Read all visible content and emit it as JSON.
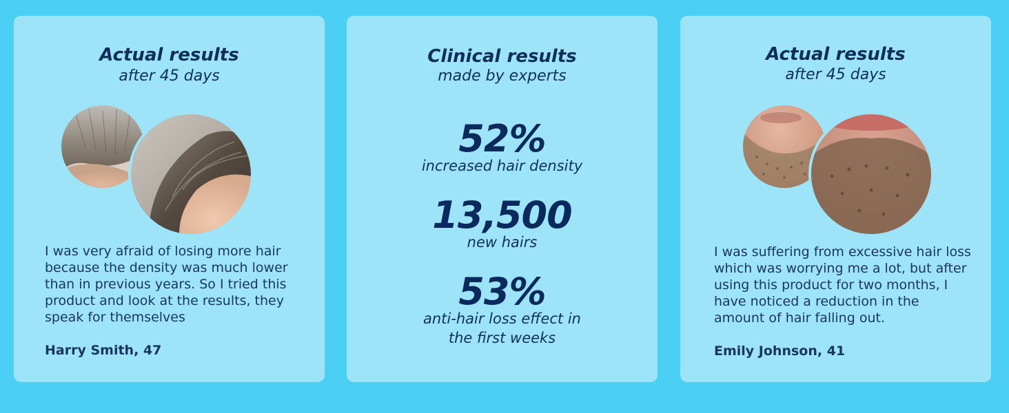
{
  "cards": [
    {
      "title": "Actual results",
      "subtitle": "after 45 days",
      "photos": [
        "hair-before-photo",
        "hair-after-photo"
      ],
      "testimonial": "I was very afraid of losing more hair because the density was much lower than in previous years. So I tried this product and look at the results, they speak for themselves",
      "author": "Harry Smith, 47"
    },
    {
      "title": "Clinical results",
      "subtitle": "made by experts",
      "stats": [
        {
          "value": "52%",
          "label": "increased hair density"
        },
        {
          "value": "13,500",
          "label": "new hairs"
        },
        {
          "value": "53%",
          "label": "anti-hair loss effect in the first weeks"
        }
      ]
    },
    {
      "title": "Actual results",
      "subtitle": "after 45 days",
      "photos": [
        "beard-before-photo",
        "beard-after-photo"
      ],
      "testimonial": "I was suffering from excessive hair loss which was worrying me a lot, but after using this product for two months, I have noticed a reduction in the amount of hair falling out.",
      "author": "Emily Johnson, 41"
    }
  ],
  "colors": {
    "page_background": "#4ccff5",
    "card_background": "#9de4f8",
    "heading_text": "#0f2f5a",
    "body_text": "#1a3660"
  }
}
